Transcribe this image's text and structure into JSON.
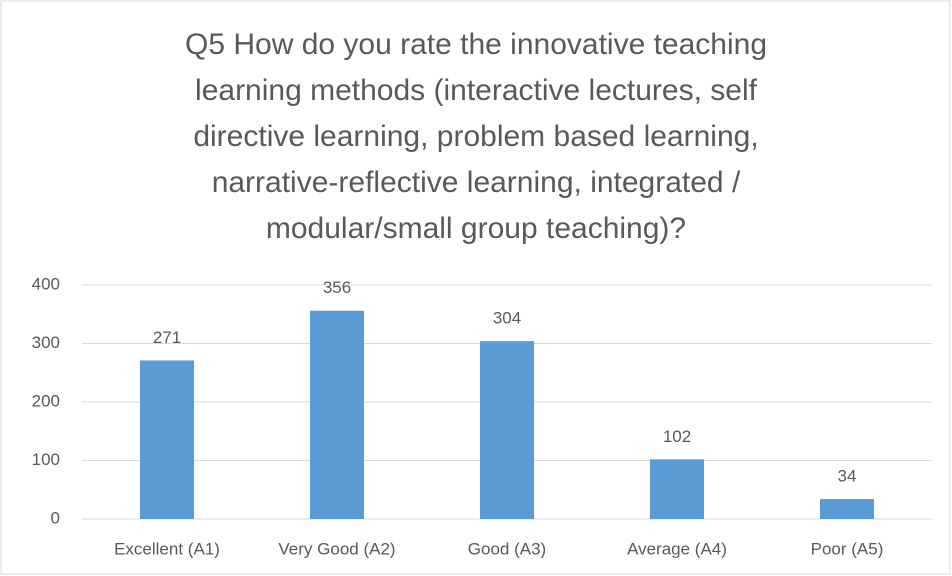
{
  "chart_data": {
    "type": "bar",
    "title": "Q5 How do you rate the innovative teaching learning methods (interactive lectures, self directive learning, problem based learning, narrative-reflective learning, integrated / modular/small group teaching)?",
    "categories": [
      "Excellent (A1)",
      "Very Good (A2)",
      "Good (A3)",
      "Average (A4)",
      "Poor (A5)"
    ],
    "values": [
      271,
      356,
      304,
      102,
      34
    ],
    "color": "#5b9bd5",
    "ylim": [
      0,
      400
    ],
    "yticks": [
      0,
      100,
      200,
      300,
      400
    ],
    "grid": true
  }
}
